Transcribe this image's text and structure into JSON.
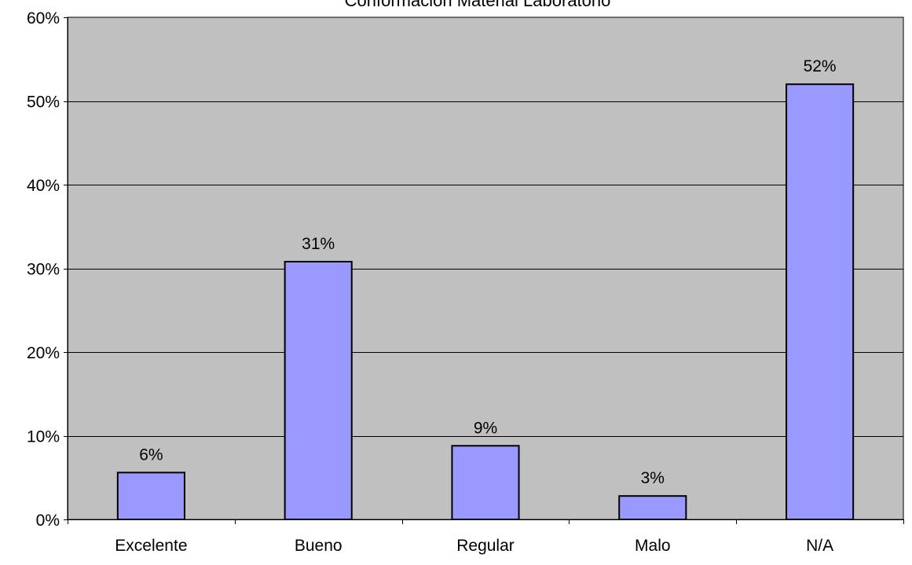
{
  "chart_data": {
    "type": "bar",
    "title": "Conformación Material Laboratorio",
    "categories": [
      "Excelente",
      "Bueno",
      "Regular",
      "Malo",
      "N/A"
    ],
    "values": [
      5.6,
      30.8,
      8.8,
      2.8,
      52.0
    ],
    "data_labels": [
      "6%",
      "31%",
      "9%",
      "3%",
      "52%"
    ],
    "ylim": [
      0,
      60
    ],
    "yticks": [
      0,
      10,
      20,
      30,
      40,
      50,
      60
    ],
    "ytick_labels": [
      "0%",
      "10%",
      "20%",
      "30%",
      "40%",
      "50%",
      "60%"
    ],
    "xlabel": "",
    "ylabel": "",
    "grid": true,
    "legend": "none",
    "colors": {
      "plot_bg": "#c0c0c0",
      "bar_fill": "#9999ff",
      "bar_stroke": "#000000",
      "grid": "#000000",
      "text": "#000000"
    }
  }
}
